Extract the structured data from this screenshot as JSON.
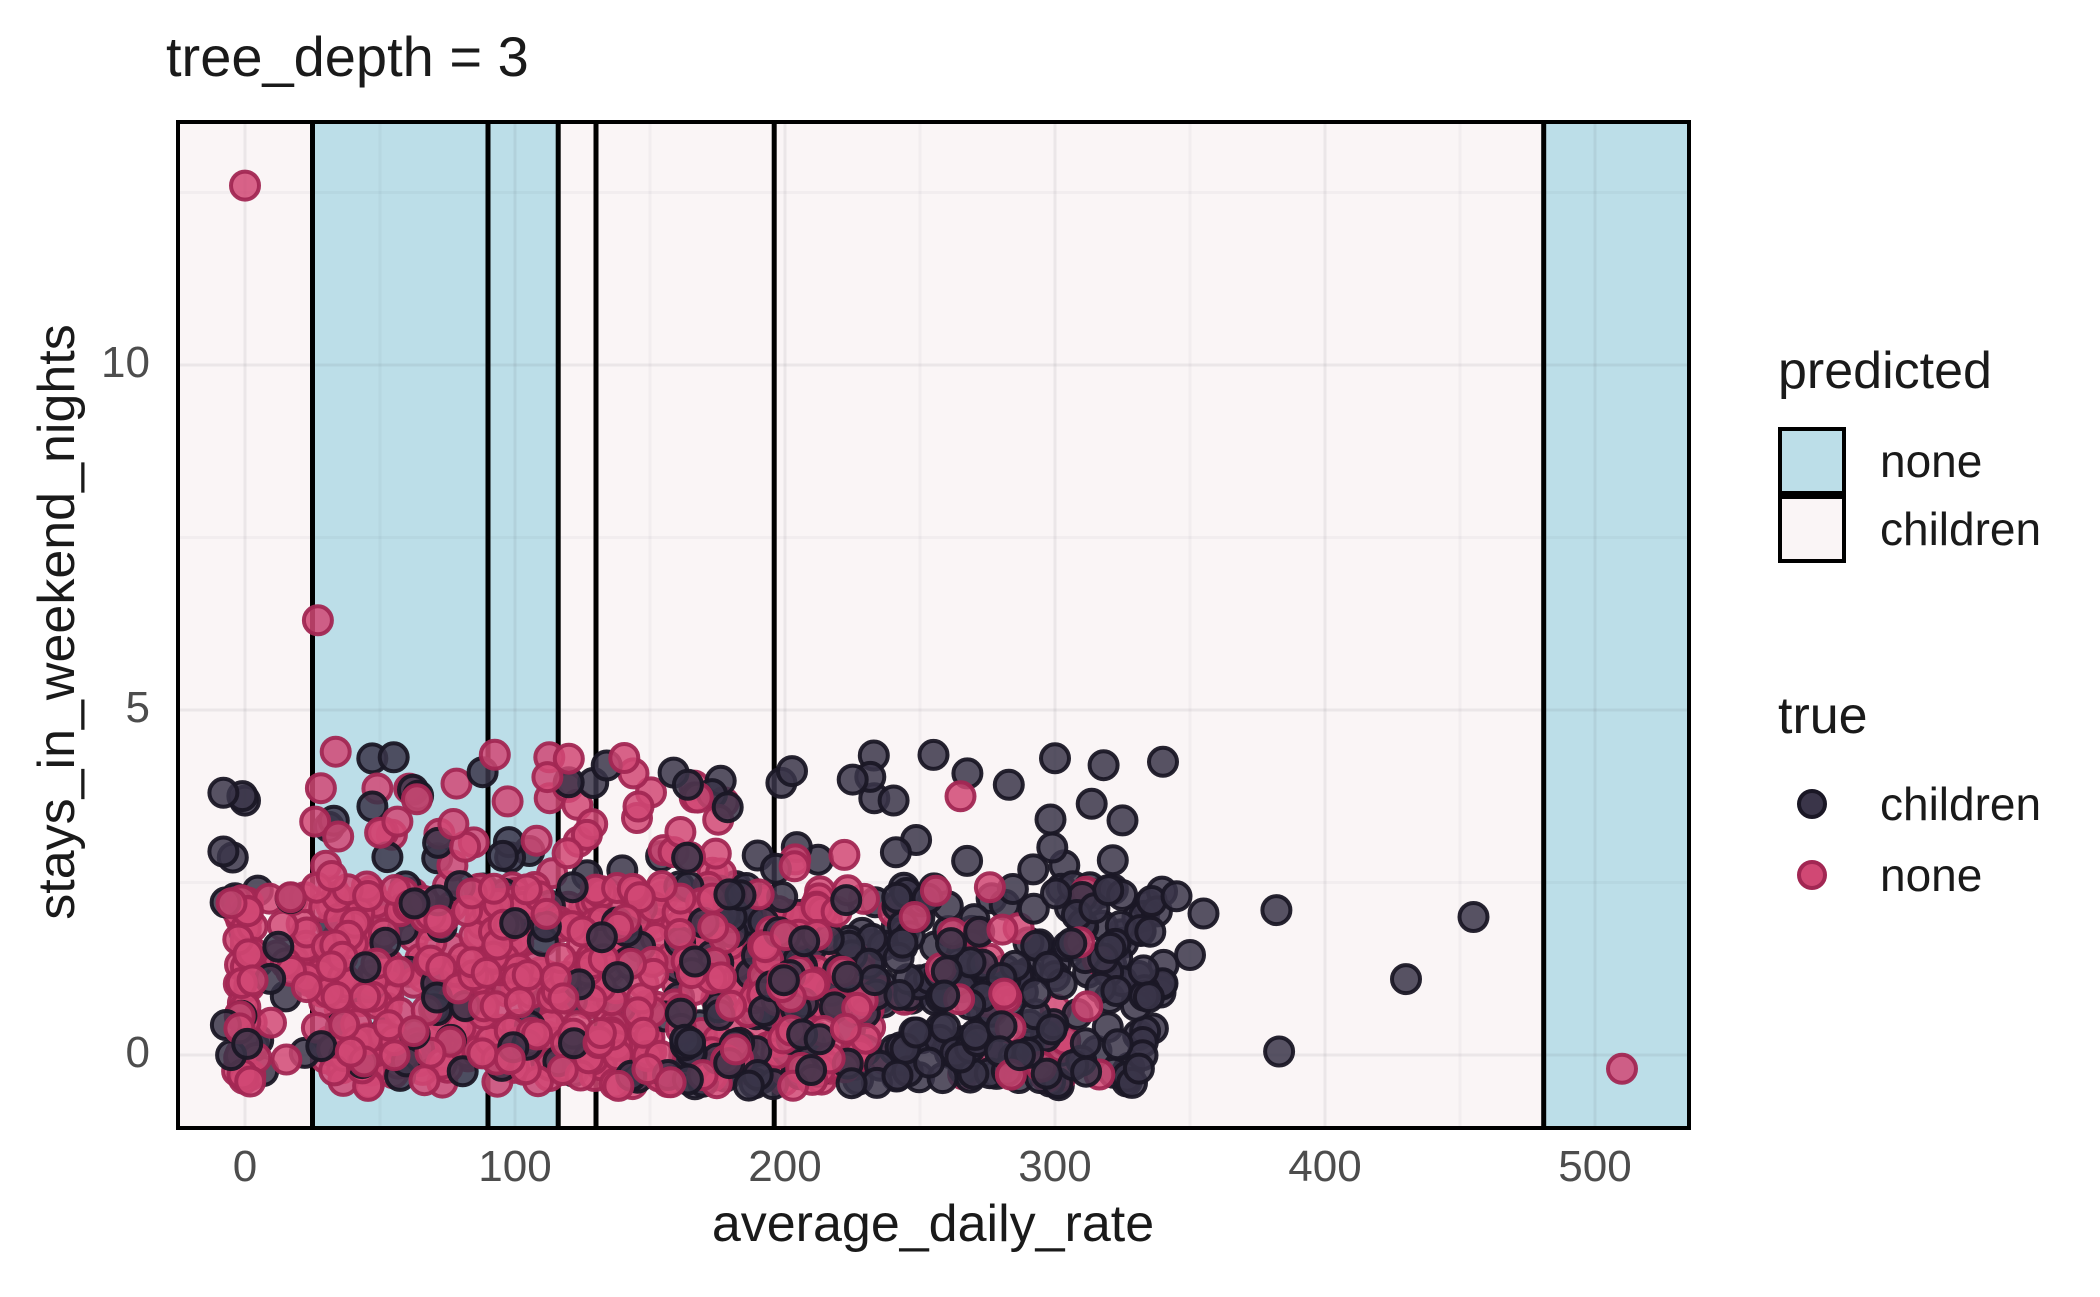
{
  "chart_data": {
    "type": "scatter",
    "title": "tree_depth = 3",
    "xlabel": "average_daily_rate",
    "ylabel": "stays_in_weekend_nights",
    "x_ticks": [
      0,
      100,
      200,
      300,
      400,
      500
    ],
    "y_ticks": [
      0,
      5,
      10
    ],
    "xlim": [
      -24.8,
      535
    ],
    "ylim": [
      -1.06,
      13.6
    ],
    "grid": {
      "x_minor": [
        50,
        150,
        250,
        350,
        450
      ],
      "y_minor": [
        2.5,
        7.5,
        12.5
      ]
    },
    "decision_boundaries_x": [
      25,
      90,
      116,
      130,
      196,
      481
    ],
    "predicted_regions": [
      {
        "x0": -24.8,
        "x1": 25,
        "predicted": "children"
      },
      {
        "x0": 25,
        "x1": 90,
        "predicted": "none"
      },
      {
        "x0": 90,
        "x1": 116,
        "predicted": "none"
      },
      {
        "x0": 116,
        "x1": 130,
        "predicted": "children"
      },
      {
        "x0": 130,
        "x1": 196,
        "predicted": "children"
      },
      {
        "x0": 196,
        "x1": 481,
        "predicted": "children"
      },
      {
        "x0": 481,
        "x1": 535,
        "predicted": "none"
      }
    ],
    "legend": {
      "predicted": {
        "title": "predicted",
        "items": [
          {
            "label": "none"
          },
          {
            "label": "children"
          }
        ]
      },
      "true": {
        "title": "true",
        "items": [
          {
            "label": "children"
          },
          {
            "label": "none"
          }
        ]
      }
    },
    "colors": {
      "figure_background": "#ffffff",
      "panel_background": "#faf5f6",
      "region_none_fill": "#bcdee8",
      "grid_major": "rgba(60,60,80,0.08)",
      "grid_minor": "rgba(60,60,80,0.04)",
      "boundary_line": "#000000",
      "panel_border": "#000000",
      "children_fill": "#3a3549",
      "children_stroke": "#1a1725",
      "none_fill": "#d14874",
      "none_stroke": "#a22753",
      "title_text": "#1a1a1a",
      "tick_label_text": "#4d4d4d"
    },
    "seed": 7,
    "point_style": {
      "radius": 14,
      "stroke_width": 4,
      "fill_opacity": 0.85,
      "stroke_opacity": 0.95
    },
    "notable_points": [
      {
        "class": "none",
        "x": 0,
        "y": 12.6
      },
      {
        "class": "none",
        "x": 27,
        "y": 6.3
      },
      {
        "class": "none",
        "x": 510,
        "y": -0.2
      },
      {
        "class": "none",
        "x": 265,
        "y": 3.75
      },
      {
        "class": "none",
        "x": 222,
        "y": 2.9
      },
      {
        "class": "none",
        "x": 248,
        "y": 2.0
      },
      {
        "class": "none",
        "x": -5,
        "y": 2.2
      },
      {
        "class": "children",
        "x": 318,
        "y": 4.2
      },
      {
        "class": "children",
        "x": 340,
        "y": 4.25
      },
      {
        "class": "children",
        "x": 300,
        "y": 4.3
      },
      {
        "class": "children",
        "x": 255,
        "y": 4.35
      },
      {
        "class": "children",
        "x": 355,
        "y": 2.05
      },
      {
        "class": "children",
        "x": 382,
        "y": 2.1
      },
      {
        "class": "children",
        "x": 430,
        "y": 1.1
      },
      {
        "class": "children",
        "x": 455,
        "y": 2.0
      },
      {
        "class": "children",
        "x": 383,
        "y": 0.05
      },
      {
        "class": "children",
        "x": 350,
        "y": 1.45
      },
      {
        "class": "children",
        "x": 345,
        "y": 2.3
      },
      {
        "class": "children",
        "x": -8,
        "y": 3.8
      },
      {
        "class": "children",
        "x": -8,
        "y": 2.95
      }
    ],
    "point_clusters": [
      {
        "class": "none",
        "x0": -3,
        "x1": 3,
        "y": 0.95,
        "jitter": 1.35,
        "n": 40
      },
      {
        "class": "none",
        "x0": 4,
        "x1": 22,
        "y": 1.1,
        "jitter": 1.2,
        "n": 12
      },
      {
        "class": "none",
        "x0": 22,
        "x1": 160,
        "y": 0,
        "jitter": 0.45,
        "n": 130
      },
      {
        "class": "none",
        "x0": 22,
        "x1": 160,
        "y": 1,
        "jitter": 0.45,
        "n": 130
      },
      {
        "class": "none",
        "x0": 22,
        "x1": 162,
        "y": 2,
        "jitter": 0.45,
        "n": 128
      },
      {
        "class": "none",
        "x0": 160,
        "x1": 230,
        "y": 0,
        "jitter": 0.45,
        "n": 55
      },
      {
        "class": "none",
        "x0": 160,
        "x1": 230,
        "y": 1,
        "jitter": 0.45,
        "n": 55
      },
      {
        "class": "none",
        "x0": 160,
        "x1": 232,
        "y": 2,
        "jitter": 0.45,
        "n": 50
      },
      {
        "class": "none",
        "x0": 230,
        "x1": 330,
        "y": 0,
        "jitter": 0.45,
        "n": 12
      },
      {
        "class": "none",
        "x0": 230,
        "x1": 325,
        "y": 1,
        "jitter": 0.45,
        "n": 12
      },
      {
        "class": "none",
        "x0": 230,
        "x1": 320,
        "y": 2,
        "jitter": 0.45,
        "n": 11
      },
      {
        "class": "none",
        "x0": 25,
        "x1": 205,
        "y": 3,
        "jitter": 0.45,
        "n": 30
      },
      {
        "class": "none",
        "x0": 28,
        "x1": 185,
        "y": 4,
        "jitter": 0.4,
        "n": 22
      },
      {
        "class": "children",
        "x0": -9,
        "x1": 6,
        "y": 1.8,
        "jitter": 2.0,
        "n": 13
      },
      {
        "class": "children",
        "x0": 4,
        "x1": 22,
        "y": 1.0,
        "jitter": 1.3,
        "n": 8
      },
      {
        "class": "children",
        "x0": 22,
        "x1": 160,
        "y": 0,
        "jitter": 0.45,
        "n": 26
      },
      {
        "class": "children",
        "x0": 22,
        "x1": 160,
        "y": 1,
        "jitter": 0.45,
        "n": 25
      },
      {
        "class": "children",
        "x0": 22,
        "x1": 160,
        "y": 2,
        "jitter": 0.45,
        "n": 25
      },
      {
        "class": "children",
        "x0": 160,
        "x1": 235,
        "y": 0,
        "jitter": 0.45,
        "n": 46
      },
      {
        "class": "children",
        "x0": 160,
        "x1": 235,
        "y": 1,
        "jitter": 0.45,
        "n": 45
      },
      {
        "class": "children",
        "x0": 160,
        "x1": 235,
        "y": 2,
        "jitter": 0.45,
        "n": 44
      },
      {
        "class": "children",
        "x0": 235,
        "x1": 345,
        "y": 0,
        "jitter": 0.45,
        "n": 72
      },
      {
        "class": "children",
        "x0": 235,
        "x1": 342,
        "y": 1,
        "jitter": 0.45,
        "n": 68
      },
      {
        "class": "children",
        "x0": 235,
        "x1": 340,
        "y": 2,
        "jitter": 0.45,
        "n": 66
      },
      {
        "class": "children",
        "x0": 30,
        "x1": 345,
        "y": 3,
        "jitter": 0.45,
        "n": 26
      },
      {
        "class": "children",
        "x0": 45,
        "x1": 335,
        "y": 4,
        "jitter": 0.42,
        "n": 24
      }
    ]
  }
}
